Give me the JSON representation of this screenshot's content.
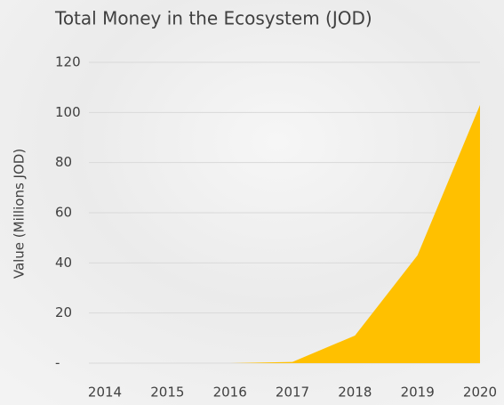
{
  "chart_data": {
    "type": "area",
    "title": "Total Money in the Ecosystem (JOD)",
    "ylabel": "Value (Millions JOD)",
    "categories": [
      "2014",
      "2015",
      "2016",
      "2017",
      "2018",
      "2019",
      "2020"
    ],
    "values": [
      0,
      0,
      0,
      0.5,
      11,
      43,
      103
    ],
    "color": "#ffc000",
    "ylim": [
      0,
      120
    ],
    "yticks": [
      {
        "value": 0,
        "label": "-"
      },
      20,
      40,
      60,
      80,
      100,
      120
    ],
    "grid": true
  }
}
